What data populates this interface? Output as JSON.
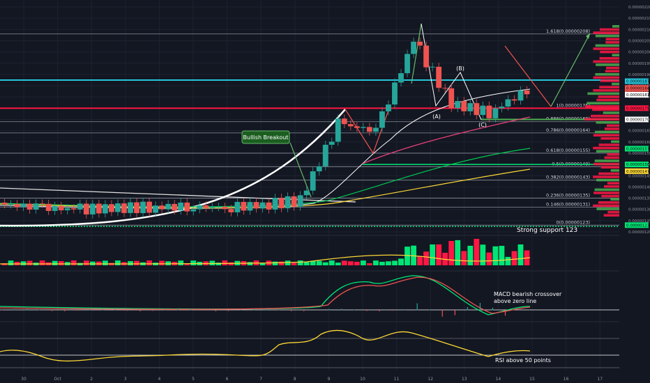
{
  "chart_data": [
    {
      "type": "candlestick",
      "panel": "price",
      "y_axis_ticks": [
        "0.00000220",
        "0.00000215",
        "0.00000210",
        "0.00000205",
        "0.00000200",
        "0.00000195",
        "0.00000190",
        "0.00000185",
        "0.00000180",
        "0.00000175",
        "0.00000170",
        "0.00000165",
        "0.00000160",
        "0.00000155",
        "0.00000150",
        "0.00000145",
        "0.00000140",
        "0.00000135",
        "0.00000130",
        "0.00000125",
        "0.00000120"
      ],
      "ylim": [
        1.2e-06,
        2.22e-06
      ],
      "x_ticks": [
        "30",
        "Oct",
        "2",
        "3",
        "4",
        "5",
        "6",
        "7",
        "8",
        "9",
        "10",
        "11",
        "12",
        "13",
        "14",
        "15",
        "16",
        "17"
      ],
      "fib_levels": [
        {
          "label": "1.618(0.00000208)",
          "value": 2.08e-06
        },
        {
          "label": "1(0.00000175)",
          "value": 1.75e-06
        },
        {
          "label": "0.886(0.00000169)",
          "value": 1.69e-06
        },
        {
          "label": "0.786(0.00000164)",
          "value": 1.64e-06
        },
        {
          "label": "0.618(0.00000155)",
          "value": 1.55e-06
        },
        {
          "label": "0.5(0.00000149)",
          "value": 1.49e-06
        },
        {
          "label": "0.382(0.00000143)",
          "value": 1.43e-06
        },
        {
          "label": "0.236(0.00000135)",
          "value": 1.35e-06
        },
        {
          "label": "0.146(0.00000131)",
          "value": 1.31e-06
        },
        {
          "label": "0(0.00000123)",
          "value": 1.23e-06
        }
      ],
      "price_badges": [
        {
          "text": "0.00000187",
          "color": "#26c6da"
        },
        {
          "text": "0.00000183",
          "color": "#ef5350"
        },
        {
          "text": "0.00000184",
          "color": "#ef5350"
        },
        {
          "text": "0.00000181",
          "color": "#ef5350"
        },
        {
          "text": "0.00000181",
          "color": "#ffffff"
        },
        {
          "text": "0.00000175",
          "color": "#ff1744"
        },
        {
          "text": "0.00000170",
          "color": "#4caf50"
        },
        {
          "text": "0.00000170",
          "color": "#ffffff"
        },
        {
          "text": "0.00000157",
          "color": "#00e676"
        },
        {
          "text": "0.00000150",
          "color": "#00e676"
        },
        {
          "text": "0.00000147",
          "color": "#fdd835"
        },
        {
          "text": "0.00000123",
          "color": "#00e676"
        }
      ],
      "wave_labels": [
        "(A)",
        "(B)",
        "(C)"
      ],
      "annotations": {
        "breakout": "Bullish Breakout",
        "support": "Strong support 123"
      },
      "candles_ohlc_daily": [
        {
          "day": "30",
          "open": 1.33e-06,
          "close": 1.325e-06
        },
        {
          "day": "Oct",
          "open": 1.325e-06,
          "close": 1.31e-06
        },
        {
          "day": "2",
          "open": 1.31e-06,
          "close": 1.3e-06
        },
        {
          "day": "3",
          "open": 1.3e-06,
          "close": 1.305e-06
        },
        {
          "day": "4",
          "open": 1.305e-06,
          "close": 1.31e-06
        },
        {
          "day": "5",
          "open": 1.31e-06,
          "close": 1.312e-06
        },
        {
          "day": "6",
          "open": 1.312e-06,
          "close": 1.308e-06
        },
        {
          "day": "7",
          "open": 1.308e-06,
          "close": 1.32e-06
        },
        {
          "day": "8",
          "open": 1.32e-06,
          "close": 1.34e-06
        },
        {
          "day": "9",
          "open": 1.34e-06,
          "close": 1.68e-06
        },
        {
          "day": "10",
          "open": 1.68e-06,
          "close": 1.65e-06
        },
        {
          "day": "11",
          "open": 1.65e-06,
          "close": 2.05e-06
        },
        {
          "day": "12",
          "open": 2.05e-06,
          "close": 1.77e-06
        },
        {
          "day": "13",
          "open": 1.77e-06,
          "close": 1.73e-06
        },
        {
          "day": "14",
          "open": 1.73e-06,
          "close": 1.83e-06
        }
      ],
      "moving_averages": [
        {
          "name": "",
          "color": "#ffffff"
        },
        {
          "name": "",
          "color": "#00c853"
        },
        {
          "name": "",
          "color": "#fdd835"
        },
        {
          "name": "",
          "color": "#ec407a"
        }
      ]
    },
    {
      "type": "bar",
      "panel": "volume",
      "y_axis_ticks": [
        "800M",
        "400M"
      ],
      "badges": [
        {
          "text": "258.769M",
          "color": "#fdd835"
        },
        {
          "text": "77.005M",
          "color": "#ef5350"
        }
      ]
    },
    {
      "type": "line",
      "panel": "macd",
      "y_axis_ticks": [
        "0.00000015",
        "0.00000010",
        "0.00000005",
        "0.00000000",
        "-0.00000005"
      ],
      "badges": [
        {
          "text": "0.00000004",
          "color": "#ef5350"
        },
        {
          "text": "0.00000003",
          "color": "#fdd835"
        },
        {
          "text": "-0.00000001",
          "color": "#ef5350"
        },
        {
          "text": "-0.00000000",
          "color": "#ffffff"
        }
      ],
      "annotation": "MACD bearish crossover\nabove zero line"
    },
    {
      "type": "line",
      "panel": "rsi",
      "y_axis_ticks": [
        "100.00",
        "80.00",
        "60.00",
        "40.00"
      ],
      "badges": [
        {
          "text": "55.87",
          "color": "#fdd835"
        },
        {
          "text": "50.00",
          "color": "#ffffff"
        }
      ],
      "annotation": "RSI above 50 points"
    }
  ]
}
